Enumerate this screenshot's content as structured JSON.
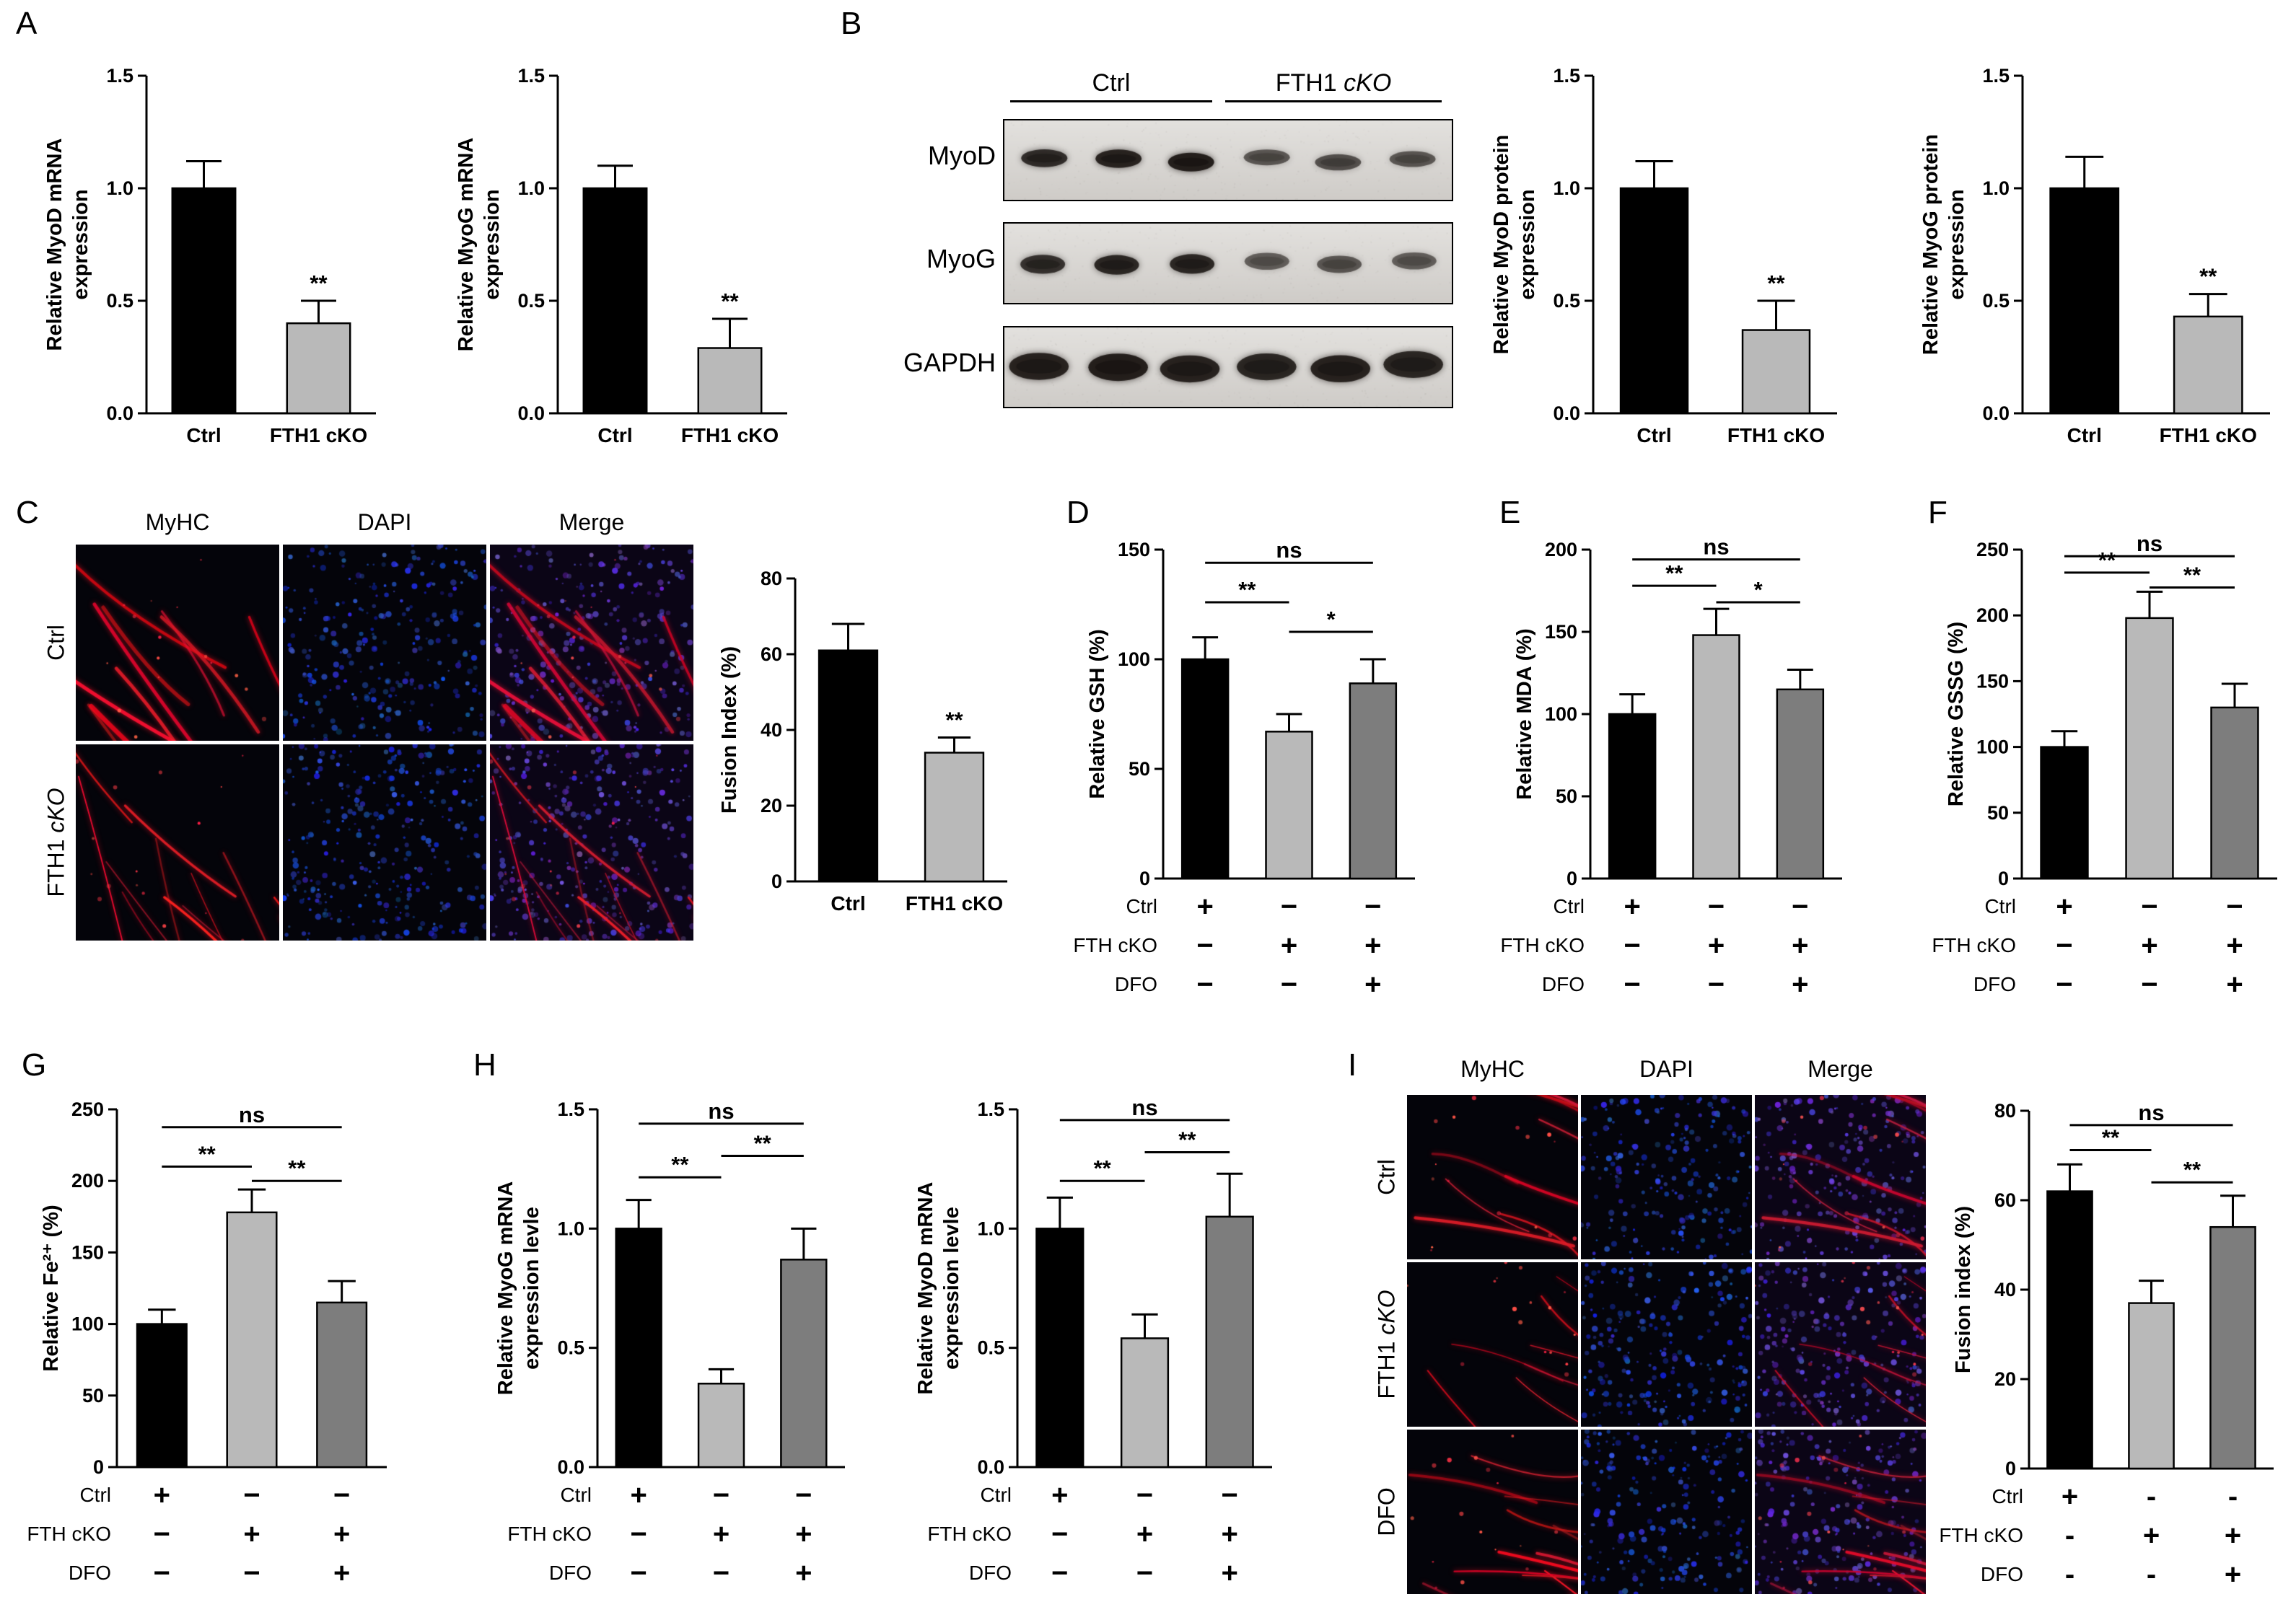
{
  "panels": {
    "a": "A",
    "b": "B",
    "c": "C",
    "d": "D",
    "e": "E",
    "f": "F",
    "g": "G",
    "h": "H",
    "i": "I"
  },
  "blot": {
    "headers": [
      {
        "pre": "Ctrl",
        "italic": ""
      },
      {
        "pre": "FTH1 ",
        "italic": "cKO"
      }
    ],
    "rows": [
      {
        "label": "MyoD",
        "intensities": [
          0.85,
          0.95,
          1.0,
          0.5,
          0.55,
          0.5
        ]
      },
      {
        "label": "MyoG",
        "intensities": [
          0.8,
          0.9,
          0.9,
          0.45,
          0.5,
          0.45
        ]
      },
      {
        "label": "GAPDH",
        "intensities": [
          0.95,
          1.0,
          0.95,
          0.9,
          0.95,
          0.9
        ]
      }
    ]
  },
  "microscopy_c": {
    "col_headers": [
      "MyHC",
      "DAPI",
      "Merge"
    ],
    "row_labels": [
      {
        "pre": "Ctrl",
        "italic": ""
      },
      {
        "pre": "FTH1 ",
        "italic": "cKO"
      }
    ]
  },
  "microscopy_i": {
    "col_headers": [
      "MyHC",
      "DAPI",
      "Merge"
    ],
    "row_labels": [
      {
        "pre": "Ctrl",
        "italic": ""
      },
      {
        "pre": "FTH1 ",
        "italic": "cKO"
      },
      {
        "pre": "DFO",
        "italic": ""
      }
    ]
  },
  "chart_data": [
    {
      "id": "a_myod_mrna",
      "type": "bar",
      "ylabel": "Relative MyoD mRNA\nexpression",
      "ylim": [
        0,
        1.5
      ],
      "yticks": [
        "0.0",
        "0.5",
        "1.0",
        "1.5"
      ],
      "categories": [
        "Ctrl",
        "FTH1 cKO"
      ],
      "values": [
        1.0,
        0.4
      ],
      "errors": [
        0.12,
        0.1
      ],
      "bar_colors": [
        "#000000",
        "#b9b9b9"
      ],
      "sig_star": {
        "bar": 1,
        "text": "**"
      }
    },
    {
      "id": "a_myog_mrna",
      "type": "bar",
      "ylabel": "Relative MyoG mRNA\nexpression",
      "ylim": [
        0,
        1.5
      ],
      "yticks": [
        "0.0",
        "0.5",
        "1.0",
        "1.5"
      ],
      "categories": [
        "Ctrl",
        "FTH1 cKO"
      ],
      "values": [
        1.0,
        0.29
      ],
      "errors": [
        0.1,
        0.13
      ],
      "bar_colors": [
        "#000000",
        "#b9b9b9"
      ],
      "sig_star": {
        "bar": 1,
        "text": "**"
      }
    },
    {
      "id": "b_myod_protein",
      "type": "bar",
      "ylabel": "Relative MyoD protein\nexpression",
      "ylim": [
        0,
        1.5
      ],
      "yticks": [
        "0.0",
        "0.5",
        "1.0",
        "1.5"
      ],
      "categories": [
        "Ctrl",
        "FTH1 cKO"
      ],
      "values": [
        1.0,
        0.37
      ],
      "errors": [
        0.12,
        0.13
      ],
      "bar_colors": [
        "#000000",
        "#b9b9b9"
      ],
      "sig_star": {
        "bar": 1,
        "text": "**"
      }
    },
    {
      "id": "b_myog_protein",
      "type": "bar",
      "ylabel": "Relative MyoG protein\nexpression",
      "ylim": [
        0,
        1.5
      ],
      "yticks": [
        "0.0",
        "0.5",
        "1.0",
        "1.5"
      ],
      "categories": [
        "Ctrl",
        "FTH1 cKO"
      ],
      "values": [
        1.0,
        0.43
      ],
      "errors": [
        0.14,
        0.1
      ],
      "bar_colors": [
        "#000000",
        "#b9b9b9"
      ],
      "sig_star": {
        "bar": 1,
        "text": "**"
      }
    },
    {
      "id": "c_fusion",
      "type": "bar",
      "ylabel": "Fusion Index (%)",
      "ylim": [
        0,
        80
      ],
      "yticks": [
        "0",
        "20",
        "40",
        "60",
        "80"
      ],
      "categories": [
        "Ctrl",
        "FTH1 cKO"
      ],
      "values": [
        61,
        34
      ],
      "errors": [
        7,
        4
      ],
      "bar_colors": [
        "#000000",
        "#b9b9b9"
      ],
      "sig_star": {
        "bar": 1,
        "text": "**"
      }
    },
    {
      "id": "d_gsh",
      "type": "bar",
      "ylabel": "Relative GSH (%)",
      "ylim": [
        0,
        150
      ],
      "yticks": [
        "0",
        "50",
        "100",
        "150"
      ],
      "values": [
        100,
        67,
        89
      ],
      "errors": [
        10,
        8,
        11
      ],
      "bar_colors": [
        "#000000",
        "#b9b9b9",
        "#7d7d7d"
      ],
      "matrix": {
        "rows": [
          {
            "label": "Ctrl",
            "signs": [
              "+",
              "−",
              "−"
            ]
          },
          {
            "label": "FTH cKO",
            "signs": [
              "−",
              "+",
              "+"
            ]
          },
          {
            "label": "DFO",
            "signs": [
              "−",
              "−",
              "+"
            ]
          }
        ]
      },
      "sig_lines": [
        {
          "from": 0,
          "to": 1,
          "text": "**",
          "h": 0.84
        },
        {
          "from": 1,
          "to": 2,
          "text": "*",
          "h": 0.75
        },
        {
          "from": 0,
          "to": 2,
          "text": "ns",
          "h": 0.96
        }
      ]
    },
    {
      "id": "e_mda",
      "type": "bar",
      "ylabel": "Relative MDA (%)",
      "ylim": [
        0,
        200
      ],
      "yticks": [
        "0",
        "50",
        "100",
        "150",
        "200"
      ],
      "values": [
        100,
        148,
        115
      ],
      "errors": [
        12,
        16,
        12
      ],
      "bar_colors": [
        "#000000",
        "#b9b9b9",
        "#7d7d7d"
      ],
      "matrix": {
        "rows": [
          {
            "label": "Ctrl",
            "signs": [
              "+",
              "−",
              "−"
            ]
          },
          {
            "label": "FTH cKO",
            "signs": [
              "−",
              "+",
              "+"
            ]
          },
          {
            "label": "DFO",
            "signs": [
              "−",
              "−",
              "+"
            ]
          }
        ]
      },
      "sig_lines": [
        {
          "from": 0,
          "to": 1,
          "text": "**",
          "h": 0.89
        },
        {
          "from": 1,
          "to": 2,
          "text": "*",
          "h": 0.84
        },
        {
          "from": 0,
          "to": 2,
          "text": "ns",
          "h": 0.97
        }
      ]
    },
    {
      "id": "f_gssg",
      "type": "bar",
      "ylabel": "Relative GSSG (%)",
      "ylim": [
        0,
        250
      ],
      "yticks": [
        "0",
        "50",
        "100",
        "150",
        "200",
        "250"
      ],
      "values": [
        100,
        198,
        130
      ],
      "errors": [
        12,
        20,
        18
      ],
      "bar_colors": [
        "#000000",
        "#b9b9b9",
        "#7d7d7d"
      ],
      "matrix": {
        "rows": [
          {
            "label": "Ctrl",
            "signs": [
              "+",
              "−",
              "−"
            ]
          },
          {
            "label": "FTH cKO",
            "signs": [
              "−",
              "+",
              "+"
            ]
          },
          {
            "label": "DFO",
            "signs": [
              "−",
              "−",
              "+"
            ]
          }
        ]
      },
      "sig_lines": [
        {
          "from": 0,
          "to": 1,
          "text": "**",
          "h": 0.93
        },
        {
          "from": 1,
          "to": 2,
          "text": "**",
          "h": 0.885
        },
        {
          "from": 0,
          "to": 2,
          "text": "ns",
          "h": 0.98
        }
      ]
    },
    {
      "id": "g_fe",
      "type": "bar",
      "ylabel": "Relative Fe²⁺  (%)",
      "ylim": [
        0,
        250
      ],
      "yticks": [
        "0",
        "50",
        "100",
        "150",
        "200",
        "250"
      ],
      "values": [
        100,
        178,
        115
      ],
      "errors": [
        10,
        16,
        15
      ],
      "bar_colors": [
        "#000000",
        "#b9b9b9",
        "#7d7d7d"
      ],
      "matrix": {
        "rows": [
          {
            "label": "Ctrl",
            "signs": [
              "+",
              "−",
              "−"
            ]
          },
          {
            "label": "FTH cKO",
            "signs": [
              "−",
              "+",
              "+"
            ]
          },
          {
            "label": "DFO",
            "signs": [
              "−",
              "−",
              "+"
            ]
          }
        ]
      },
      "sig_lines": [
        {
          "from": 0,
          "to": 1,
          "text": "**",
          "h": 0.84
        },
        {
          "from": 1,
          "to": 2,
          "text": "**",
          "h": 0.8
        },
        {
          "from": 0,
          "to": 2,
          "text": "ns",
          "h": 0.95
        }
      ]
    },
    {
      "id": "h_myog_mrna",
      "type": "bar",
      "ylabel": "Relative MyoG mRNA\nexpression levle",
      "ylim": [
        0,
        1.5
      ],
      "yticks": [
        "0.0",
        "0.5",
        "1.0",
        "1.5"
      ],
      "values": [
        1.0,
        0.35,
        0.87
      ],
      "errors": [
        0.12,
        0.06,
        0.13
      ],
      "bar_colors": [
        "#000000",
        "#b9b9b9",
        "#7d7d7d"
      ],
      "matrix": {
        "rows": [
          {
            "label": "Ctrl",
            "signs": [
              "+",
              "−",
              "−"
            ]
          },
          {
            "label": "FTH cKO",
            "signs": [
              "−",
              "+",
              "+"
            ]
          },
          {
            "label": "DFO",
            "signs": [
              "−",
              "−",
              "+"
            ]
          }
        ]
      },
      "sig_lines": [
        {
          "from": 0,
          "to": 1,
          "text": "**",
          "h": 0.81
        },
        {
          "from": 1,
          "to": 2,
          "text": "**",
          "h": 0.87
        },
        {
          "from": 0,
          "to": 2,
          "text": "ns",
          "h": 0.96
        }
      ]
    },
    {
      "id": "h_myod_mrna",
      "type": "bar",
      "ylabel": "Relative MyoD mRNA\nexpression levle",
      "ylim": [
        0,
        1.5
      ],
      "yticks": [
        "0.0",
        "0.5",
        "1.0",
        "1.5"
      ],
      "values": [
        1.0,
        0.54,
        1.05
      ],
      "errors": [
        0.13,
        0.1,
        0.18
      ],
      "bar_colors": [
        "#000000",
        "#b9b9b9",
        "#7d7d7d"
      ],
      "matrix": {
        "rows": [
          {
            "label": "Ctrl",
            "signs": [
              "+",
              "−",
              "−"
            ]
          },
          {
            "label": "FTH cKO",
            "signs": [
              "−",
              "+",
              "+"
            ]
          },
          {
            "label": "DFO",
            "signs": [
              "−",
              "−",
              "+"
            ]
          }
        ]
      },
      "sig_lines": [
        {
          "from": 0,
          "to": 1,
          "text": "**",
          "h": 0.8
        },
        {
          "from": 1,
          "to": 2,
          "text": "**",
          "h": 0.88
        },
        {
          "from": 0,
          "to": 2,
          "text": "ns",
          "h": 0.97
        }
      ]
    },
    {
      "id": "i_fusion",
      "type": "bar",
      "ylabel": "Fusion index (%)",
      "ylim": [
        0,
        80
      ],
      "yticks": [
        "0",
        "20",
        "40",
        "60",
        "80"
      ],
      "values": [
        62,
        37,
        54
      ],
      "errors": [
        6,
        5,
        7
      ],
      "bar_colors": [
        "#000000",
        "#b9b9b9",
        "#7d7d7d"
      ],
      "matrix": {
        "rows": [
          {
            "label": "Ctrl",
            "signs": [
              "+",
              "-",
              "-"
            ]
          },
          {
            "label": "FTH cKO",
            "signs": [
              "-",
              "+",
              "+"
            ]
          },
          {
            "label": "DFO",
            "signs": [
              "-",
              "-",
              "+"
            ]
          }
        ]
      },
      "sig_lines": [
        {
          "from": 0,
          "to": 1,
          "text": "**",
          "h": 0.89
        },
        {
          "from": 1,
          "to": 2,
          "text": "**",
          "h": 0.8
        },
        {
          "from": 0,
          "to": 2,
          "text": "ns",
          "h": 0.96
        }
      ]
    }
  ]
}
